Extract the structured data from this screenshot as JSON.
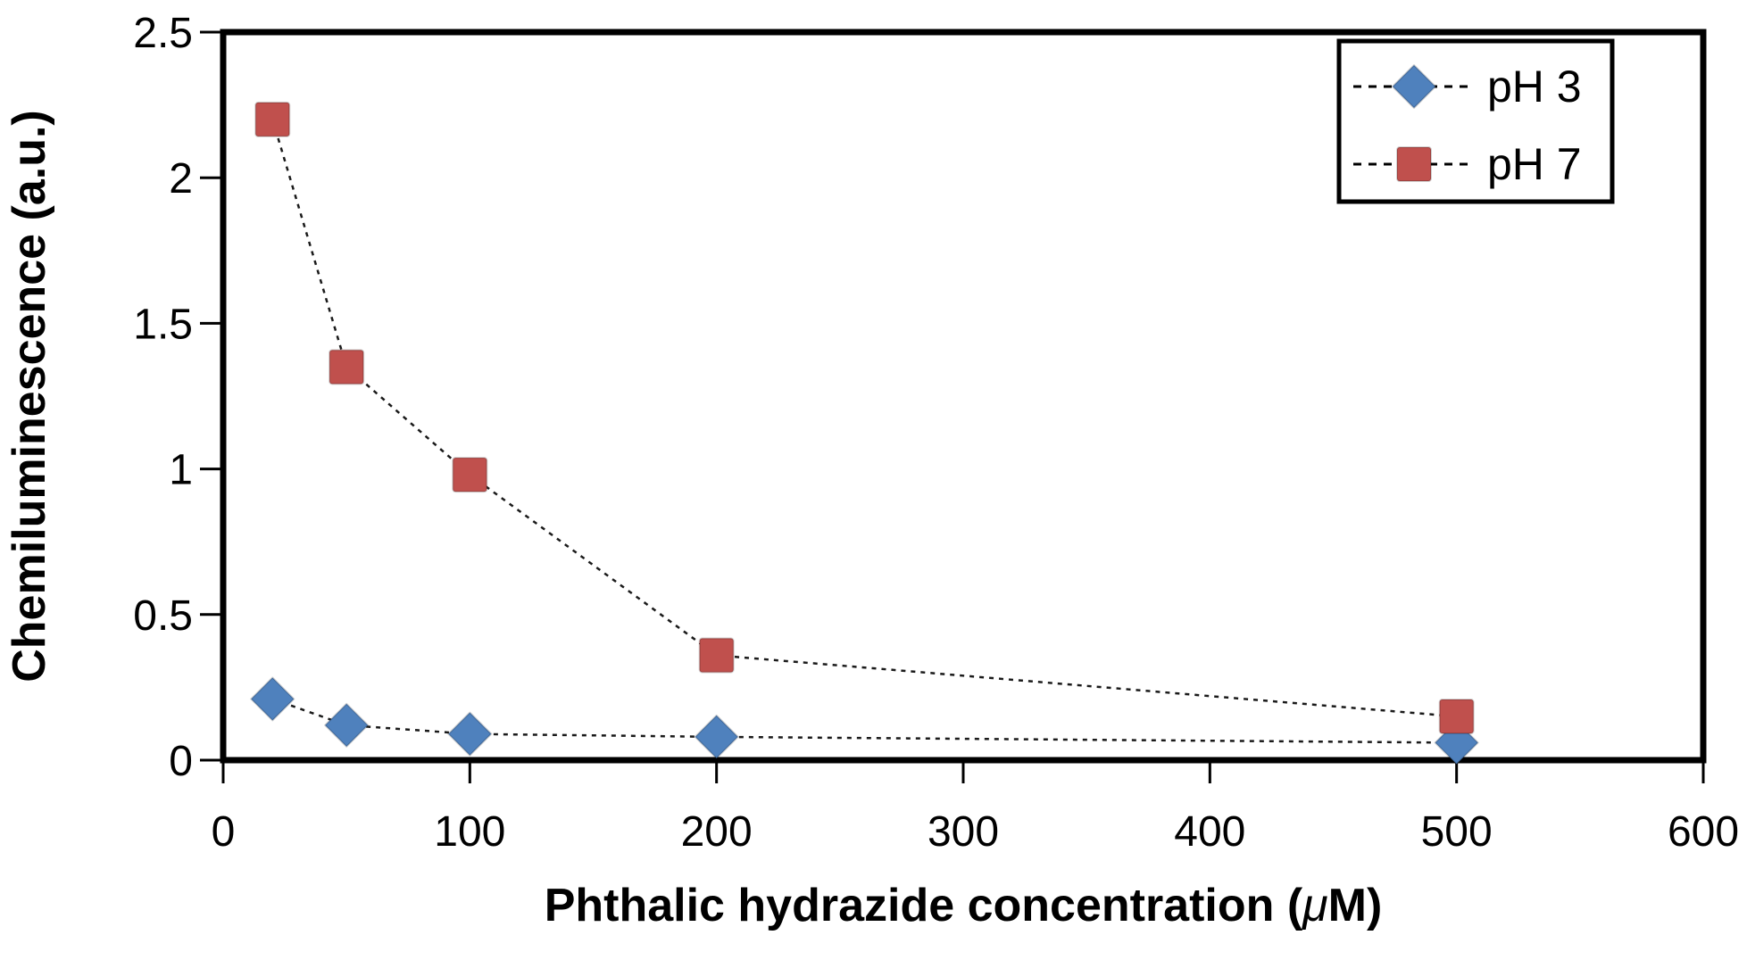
{
  "chart_data": {
    "type": "scatter",
    "title": "",
    "xlabel": "Phthalic hydrazide concentration (μM)",
    "ylabel": "Chemiluminescence (a.u.)",
    "xlim": [
      0,
      600
    ],
    "ylim": [
      0,
      2.5
    ],
    "x_ticks": [
      0,
      100,
      200,
      300,
      400,
      500,
      600
    ],
    "y_ticks": [
      0,
      0.5,
      1,
      1.5,
      2,
      2.5
    ],
    "grid": false,
    "legend_position": "top-right",
    "connector_style": "dotted",
    "x": [
      20,
      50,
      100,
      200,
      500
    ],
    "series": [
      {
        "name": "pH 3",
        "marker": "diamond",
        "color": "#4F81BD",
        "values": [
          0.21,
          0.12,
          0.09,
          0.08,
          0.06
        ]
      },
      {
        "name": "pH 7",
        "marker": "square",
        "color": "#C0504D",
        "values": [
          2.2,
          1.35,
          0.98,
          0.36,
          0.15
        ]
      }
    ]
  },
  "colors": {
    "background": "#FFFFFF",
    "axis": "#000000",
    "connector_line": "#1A1A1A",
    "legend_border": "#000000",
    "series_ph3": "#4F81BD",
    "series_ph7": "#C0504D"
  }
}
